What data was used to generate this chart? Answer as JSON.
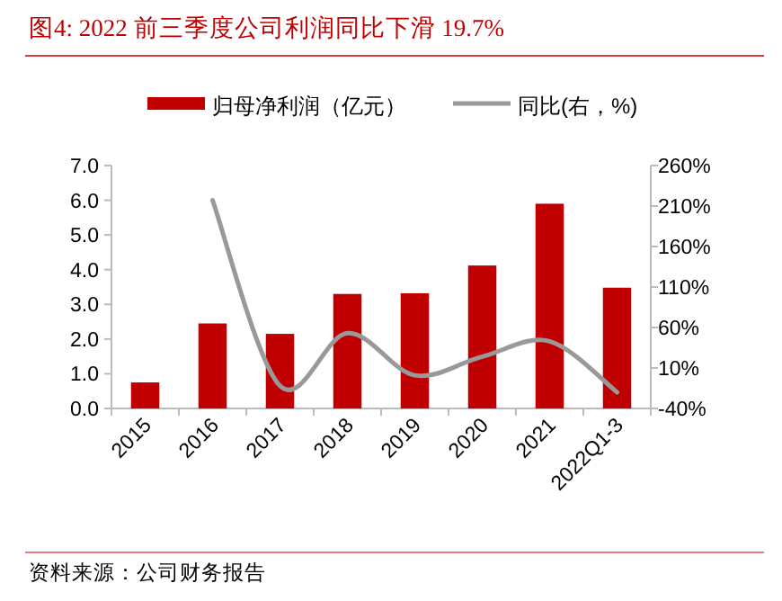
{
  "chart_data": {
    "type": "bar",
    "title": "图4:   2022 前三季度公司利润同比下滑 19.7%",
    "categories": [
      "2015",
      "2016",
      "2017",
      "2018",
      "2019",
      "2020",
      "2021",
      "2022Q1-3"
    ],
    "series": [
      {
        "name": "归母净利润（亿元）",
        "color": "#c00000",
        "values": [
          0.75,
          2.45,
          2.15,
          3.3,
          3.32,
          4.12,
          5.9,
          3.48
        ]
      },
      {
        "name": "同比(右，%)",
        "type": "line",
        "axis": "y2",
        "color": "#999999",
        "values": [
          null,
          217,
          -12,
          53,
          1,
          24,
          43,
          -20
        ]
      }
    ],
    "ylim": [
      0,
      7
    ],
    "yticks": [
      {
        "value": 0,
        "label": "0.0"
      },
      {
        "value": 1,
        "label": "1.0"
      },
      {
        "value": 2,
        "label": "2.0"
      },
      {
        "value": 3,
        "label": "3.0"
      },
      {
        "value": 4,
        "label": "4.0"
      },
      {
        "value": 5,
        "label": "5.0"
      },
      {
        "value": 6,
        "label": "6.0"
      },
      {
        "value": 7,
        "label": "7.0"
      }
    ],
    "y2lim": [
      -40,
      260
    ],
    "y2ticks": [
      {
        "value": -40,
        "label": "-40%"
      },
      {
        "value": 10,
        "label": "10%"
      },
      {
        "value": 60,
        "label": "60%"
      },
      {
        "value": 110,
        "label": "110%"
      },
      {
        "value": 160,
        "label": "160%"
      },
      {
        "value": 210,
        "label": "210%"
      },
      {
        "value": 260,
        "label": "260%"
      }
    ],
    "legend": "top",
    "grid": false,
    "annotations": [
      "资料来源：公司财务报告"
    ]
  }
}
